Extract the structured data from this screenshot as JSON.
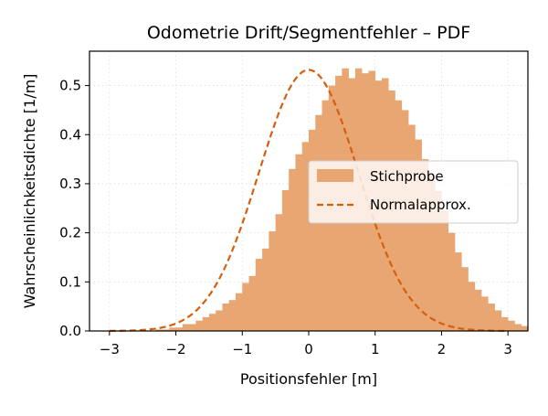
{
  "chart_data": {
    "type": "bar",
    "title": "Odometrie Drift/Segmentfehler – PDF",
    "xlabel": "Positionsfehler [m]",
    "ylabel": "Wahrscheinlichkeitsdichte [1/m]",
    "xlim": [
      -3.3,
      3.3
    ],
    "ylim": [
      0,
      0.57
    ],
    "xticks": [
      -3,
      -2,
      -1,
      0,
      1,
      2,
      3
    ],
    "xtick_labels": [
      "−3",
      "−2",
      "−1",
      "0",
      "1",
      "2",
      "3"
    ],
    "yticks": [
      0.0,
      0.1,
      0.2,
      0.3,
      0.4,
      0.5
    ],
    "ytick_labels": [
      "0.0",
      "0.1",
      "0.2",
      "0.3",
      "0.4",
      "0.5"
    ],
    "grid": true,
    "legend_position": "right",
    "series": [
      {
        "name": "Stichprobe",
        "type": "histogram",
        "color": "#e8a672",
        "bin_width": 0.1,
        "bin_start": -2.3,
        "values": [
          0.003,
          0.003,
          0.007,
          0.007,
          0.014,
          0.014,
          0.021,
          0.028,
          0.035,
          0.042,
          0.056,
          0.063,
          0.077,
          0.098,
          0.112,
          0.147,
          0.168,
          0.203,
          0.238,
          0.287,
          0.33,
          0.36,
          0.385,
          0.41,
          0.44,
          0.47,
          0.5,
          0.52,
          0.535,
          0.515,
          0.535,
          0.525,
          0.53,
          0.51,
          0.515,
          0.49,
          0.47,
          0.45,
          0.42,
          0.39,
          0.35,
          0.32,
          0.285,
          0.245,
          0.2,
          0.16,
          0.13,
          0.1,
          0.084,
          0.07,
          0.056,
          0.042,
          0.028,
          0.021,
          0.014,
          0.01
        ]
      },
      {
        "name": "Normalapprox.",
        "type": "line",
        "style": "dashed",
        "color": "#d55e0f",
        "mean": 0.0,
        "std": 0.75,
        "x_range": [
          -3,
          3
        ]
      }
    ]
  }
}
